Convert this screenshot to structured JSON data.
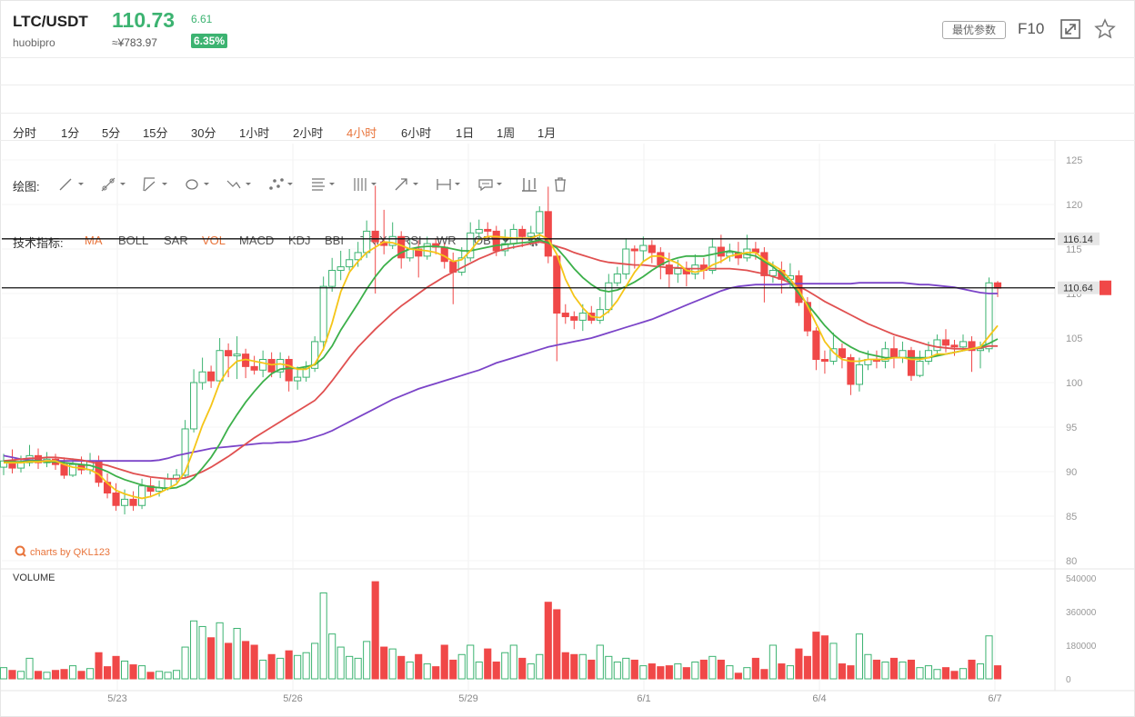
{
  "header": {
    "pair": "LTC/USDT",
    "exchange": "huobipro",
    "price": "110.73",
    "cny": "≈¥783.97",
    "change": "6.61",
    "change_pct": "6.35%",
    "params_label": "最优参数",
    "f10_label": "F10"
  },
  "periods": [
    "分时",
    "1分",
    "5分",
    "15分",
    "30分",
    "1小时",
    "2小时",
    "4小时",
    "6小时",
    "1日",
    "1周",
    "1月"
  ],
  "active_period": "4小时",
  "toolbar": {
    "draw_label": "绘图:"
  },
  "indicators_label": "技术指标:",
  "indicators": [
    "MA",
    "BOLL",
    "SAR",
    "VOL",
    "MACD",
    "KDJ",
    "BBI",
    "TRIX",
    "RSI",
    "WR",
    "OBV"
  ],
  "active_indicators": [
    "MA",
    "VOL"
  ],
  "watermark": "charts by QKL123",
  "volume_label": "VOLUME",
  "colors": {
    "up": "#3cb371",
    "down": "#f04848",
    "ma5": "#f5c518",
    "ma10": "#3cb04a",
    "ma30": "#e05050",
    "ma60": "#7b44c8",
    "accent": "#e8743b"
  },
  "chart_data": {
    "type": "candlestick",
    "x_ticks": [
      "5/23",
      "5/26",
      "5/29",
      "6/1",
      "6/4",
      "6/7"
    ],
    "y_ticks": [
      125,
      120,
      115,
      110,
      105,
      100,
      95,
      90,
      85,
      80
    ],
    "ylim": [
      80,
      127
    ],
    "price_lines": [
      116.14,
      110.64
    ],
    "price_labels": [
      "116.14",
      "110.64"
    ],
    "volume_ticks": [
      "540000",
      "360000",
      "180000",
      "0"
    ],
    "volume_ylim": [
      0,
      540000
    ],
    "candles": [
      [
        90.5,
        91.2,
        89.6,
        92.0,
        1
      ],
      [
        91.2,
        90.4,
        89.8,
        92.5,
        0
      ],
      [
        90.4,
        91.0,
        89.9,
        91.8,
        1
      ],
      [
        91.0,
        91.8,
        90.6,
        93.0,
        1
      ],
      [
        91.8,
        91.0,
        90.3,
        92.6,
        0
      ],
      [
        91.0,
        91.4,
        90.5,
        92.2,
        1
      ],
      [
        91.4,
        90.8,
        90.2,
        92.0,
        0
      ],
      [
        90.8,
        89.6,
        89.2,
        91.6,
        0
      ],
      [
        89.6,
        90.8,
        89.4,
        91.5,
        1
      ],
      [
        90.8,
        90.2,
        89.7,
        91.7,
        0
      ],
      [
        90.2,
        91.2,
        89.7,
        92.1,
        1
      ],
      [
        91.2,
        88.8,
        88.3,
        91.8,
        0
      ],
      [
        88.8,
        87.6,
        87.0,
        89.8,
        0
      ],
      [
        87.6,
        86.2,
        85.6,
        88.7,
        0
      ],
      [
        86.2,
        86.9,
        85.2,
        88.0,
        1
      ],
      [
        86.9,
        86.2,
        85.6,
        87.8,
        0
      ],
      [
        86.2,
        88.4,
        85.8,
        89.2,
        1
      ],
      [
        88.4,
        87.8,
        87.1,
        89.3,
        0
      ],
      [
        87.8,
        88.2,
        87.2,
        89.0,
        1
      ],
      [
        88.2,
        89.2,
        87.9,
        89.8,
        1
      ],
      [
        89.2,
        89.6,
        88.8,
        90.3,
        1
      ],
      [
        89.6,
        94.8,
        89.3,
        95.8,
        1
      ],
      [
        94.8,
        100.0,
        94.4,
        101.5,
        1
      ],
      [
        100.0,
        101.2,
        99.2,
        102.8,
        1
      ],
      [
        101.2,
        100.2,
        99.4,
        101.9,
        0
      ],
      [
        100.2,
        103.6,
        99.8,
        105.0,
        1
      ],
      [
        103.6,
        103.0,
        100.6,
        104.4,
        0
      ],
      [
        103.0,
        103.2,
        100.4,
        105.2,
        1
      ],
      [
        103.2,
        101.8,
        100.5,
        103.8,
        0
      ],
      [
        101.8,
        101.4,
        100.9,
        103.0,
        0
      ],
      [
        101.4,
        102.6,
        100.6,
        103.6,
        1
      ],
      [
        102.6,
        101.2,
        100.6,
        103.4,
        0
      ],
      [
        101.2,
        102.6,
        100.5,
        103.4,
        1
      ],
      [
        102.6,
        100.2,
        99.0,
        103.0,
        0
      ],
      [
        100.2,
        100.6,
        99.2,
        101.8,
        1
      ],
      [
        100.6,
        101.6,
        100.1,
        102.4,
        1
      ],
      [
        101.6,
        104.6,
        101.2,
        105.2,
        1
      ],
      [
        104.6,
        110.8,
        103.6,
        111.9,
        1
      ],
      [
        110.8,
        112.6,
        110.2,
        114.0,
        1
      ],
      [
        112.6,
        113.0,
        111.5,
        114.8,
        1
      ],
      [
        113.0,
        113.8,
        112.6,
        115.0,
        1
      ],
      [
        113.8,
        114.6,
        113.0,
        115.8,
        1
      ],
      [
        114.6,
        117.0,
        114.0,
        118.2,
        1
      ],
      [
        117.0,
        115.8,
        110.0,
        122.1,
        0
      ],
      [
        115.8,
        115.4,
        114.4,
        119.4,
        0
      ],
      [
        115.4,
        116.4,
        115.0,
        118.0,
        1
      ],
      [
        116.4,
        114.0,
        112.8,
        117.0,
        0
      ],
      [
        114.0,
        115.0,
        113.6,
        116.2,
        1
      ],
      [
        115.0,
        114.2,
        111.8,
        116.0,
        0
      ],
      [
        114.2,
        115.6,
        113.8,
        116.4,
        1
      ],
      [
        115.6,
        115.2,
        114.4,
        116.2,
        0
      ],
      [
        115.2,
        113.6,
        112.8,
        115.6,
        0
      ],
      [
        113.6,
        112.4,
        108.8,
        114.6,
        0
      ],
      [
        112.4,
        114.0,
        112.0,
        115.2,
        1
      ],
      [
        114.0,
        116.8,
        113.6,
        118.0,
        1
      ],
      [
        116.8,
        117.2,
        116.0,
        118.3,
        1
      ],
      [
        117.2,
        117.0,
        116.2,
        118.0,
        0
      ],
      [
        117.0,
        114.8,
        114.2,
        117.6,
        0
      ],
      [
        114.8,
        115.6,
        114.2,
        117.2,
        1
      ],
      [
        115.6,
        117.2,
        115.0,
        117.8,
        1
      ],
      [
        117.2,
        116.4,
        115.2,
        117.6,
        0
      ],
      [
        116.4,
        116.8,
        115.4,
        117.6,
        1
      ],
      [
        116.8,
        119.2,
        116.2,
        119.8,
        1
      ],
      [
        119.2,
        114.2,
        113.4,
        122.0,
        0
      ],
      [
        114.2,
        107.8,
        102.4,
        114.4,
        0
      ],
      [
        107.8,
        107.4,
        106.6,
        108.8,
        0
      ],
      [
        107.4,
        107.0,
        106.0,
        108.0,
        0
      ],
      [
        107.0,
        107.8,
        105.8,
        108.8,
        1
      ],
      [
        107.8,
        107.0,
        106.6,
        108.6,
        0
      ],
      [
        107.0,
        108.2,
        106.6,
        109.6,
        1
      ],
      [
        108.2,
        111.2,
        107.8,
        112.2,
        1
      ],
      [
        111.2,
        112.2,
        110.8,
        113.0,
        1
      ],
      [
        112.2,
        115.0,
        111.6,
        116.2,
        1
      ],
      [
        115.0,
        114.8,
        112.8,
        115.4,
        0
      ],
      [
        114.8,
        115.4,
        113.6,
        116.4,
        1
      ],
      [
        115.4,
        114.6,
        113.4,
        116.0,
        0
      ],
      [
        114.6,
        113.2,
        111.6,
        115.2,
        0
      ],
      [
        113.2,
        112.2,
        110.6,
        114.6,
        0
      ],
      [
        112.2,
        112.8,
        111.2,
        113.8,
        1
      ],
      [
        112.8,
        112.2,
        110.8,
        113.6,
        0
      ],
      [
        112.2,
        113.2,
        111.6,
        114.4,
        1
      ],
      [
        113.2,
        112.6,
        111.6,
        114.0,
        0
      ],
      [
        112.6,
        115.2,
        112.2,
        116.2,
        1
      ],
      [
        115.2,
        114.2,
        113.4,
        116.6,
        0
      ],
      [
        114.2,
        114.6,
        113.6,
        115.6,
        1
      ],
      [
        114.6,
        114.0,
        113.2,
        115.8,
        0
      ],
      [
        114.0,
        115.0,
        113.6,
        116.6,
        1
      ],
      [
        115.0,
        114.6,
        113.8,
        115.8,
        0
      ],
      [
        114.6,
        112.0,
        109.0,
        115.2,
        0
      ],
      [
        112.0,
        112.6,
        111.2,
        113.6,
        1
      ],
      [
        112.6,
        111.6,
        110.0,
        113.6,
        0
      ],
      [
        111.6,
        112.0,
        110.6,
        113.4,
        1
      ],
      [
        112.0,
        109.0,
        108.6,
        112.6,
        0
      ],
      [
        109.0,
        105.8,
        105.2,
        109.6,
        0
      ],
      [
        105.8,
        102.6,
        101.4,
        106.2,
        0
      ],
      [
        102.6,
        102.4,
        101.0,
        103.6,
        0
      ],
      [
        102.4,
        103.8,
        102.0,
        105.6,
        1
      ],
      [
        103.8,
        102.8,
        101.6,
        104.4,
        0
      ],
      [
        102.8,
        99.8,
        98.6,
        103.2,
        0
      ],
      [
        99.8,
        102.0,
        99.0,
        102.8,
        1
      ],
      [
        102.0,
        102.6,
        101.4,
        103.6,
        1
      ],
      [
        102.6,
        102.4,
        101.6,
        103.6,
        0
      ],
      [
        102.4,
        103.8,
        101.6,
        104.6,
        1
      ],
      [
        103.8,
        102.8,
        101.6,
        105.2,
        0
      ],
      [
        102.8,
        103.6,
        102.2,
        104.6,
        1
      ],
      [
        103.6,
        100.8,
        100.2,
        104.0,
        0
      ],
      [
        100.8,
        102.4,
        100.6,
        103.6,
        1
      ],
      [
        102.4,
        103.6,
        102.0,
        104.6,
        1
      ],
      [
        103.6,
        104.8,
        103.0,
        105.4,
        1
      ],
      [
        104.8,
        104.2,
        103.4,
        106.0,
        0
      ],
      [
        104.2,
        104.0,
        103.0,
        104.8,
        0
      ],
      [
        104.0,
        104.6,
        103.6,
        105.4,
        1
      ],
      [
        104.6,
        103.6,
        101.2,
        105.2,
        0
      ],
      [
        103.6,
        103.8,
        101.6,
        104.6,
        1
      ],
      [
        103.8,
        111.2,
        103.4,
        111.8,
        1
      ],
      [
        111.2,
        110.6,
        109.6,
        111.4,
        0
      ]
    ],
    "volumes": [
      60000,
      45000,
      40000,
      110000,
      40000,
      35000,
      45000,
      50000,
      70000,
      40000,
      55000,
      140000,
      65000,
      120000,
      95000,
      75000,
      70000,
      35000,
      40000,
      35000,
      45000,
      170000,
      310000,
      280000,
      220000,
      300000,
      190000,
      270000,
      200000,
      180000,
      100000,
      130000,
      110000,
      150000,
      125000,
      140000,
      190000,
      460000,
      240000,
      170000,
      120000,
      110000,
      200000,
      520000,
      170000,
      160000,
      120000,
      90000,
      130000,
      80000,
      65000,
      180000,
      100000,
      130000,
      180000,
      90000,
      160000,
      90000,
      140000,
      180000,
      110000,
      80000,
      130000,
      410000,
      370000,
      140000,
      130000,
      130000,
      100000,
      180000,
      120000,
      90000,
      110000,
      100000,
      70000,
      80000,
      65000,
      70000,
      80000,
      60000,
      90000,
      100000,
      120000,
      100000,
      70000,
      30000,
      60000,
      110000,
      50000,
      180000,
      80000,
      70000,
      160000,
      120000,
      250000,
      230000,
      190000,
      80000,
      70000,
      240000,
      130000,
      100000,
      90000,
      110000,
      90000,
      100000,
      60000,
      70000,
      50000,
      60000,
      40000,
      55000,
      100000,
      80000,
      230000,
      70000
    ],
    "ma5": [
      91.0,
      91.0,
      91.0,
      91.1,
      91.1,
      91.2,
      91.2,
      90.8,
      90.5,
      90.4,
      90.2,
      89.7,
      88.7,
      87.9,
      87.5,
      87.2,
      87.0,
      87.2,
      87.6,
      88.1,
      88.6,
      90.0,
      92.5,
      95.2,
      97.4,
      100.0,
      101.5,
      102.4,
      102.6,
      102.4,
      102.2,
      102.0,
      102.1,
      101.9,
      101.5,
      101.5,
      102.1,
      103.8,
      106.7,
      110.2,
      112.4,
      113.6,
      114.6,
      115.2,
      115.8,
      115.7,
      115.4,
      115.0,
      114.9,
      114.8,
      114.6,
      114.2,
      113.6,
      113.8,
      114.8,
      116.0,
      116.4,
      116.4,
      116.3,
      116.2,
      116.2,
      116.2,
      116.6,
      116.1,
      114.4,
      111.6,
      109.7,
      108.4,
      107.4,
      107.3,
      108.0,
      109.2,
      110.8,
      112.4,
      113.6,
      114.2,
      114.2,
      113.8,
      113.4,
      112.6,
      112.4,
      112.6,
      113.2,
      113.6,
      114.2,
      114.4,
      114.6,
      114.6,
      113.8,
      113.2,
      112.6,
      111.6,
      110.4,
      108.6,
      106.6,
      104.6,
      103.4,
      102.6,
      102.4,
      102.4,
      102.6,
      102.6,
      102.6,
      102.8,
      102.8,
      102.6,
      102.6,
      102.8,
      103.2,
      103.2,
      103.4,
      103.6,
      103.8,
      104.0,
      105.2,
      106.4
    ],
    "ma10": [
      91.1,
      91.1,
      91.1,
      91.2,
      91.2,
      91.1,
      91.1,
      91.0,
      90.9,
      90.8,
      90.7,
      90.4,
      90.0,
      89.5,
      89.1,
      88.8,
      88.5,
      88.3,
      88.2,
      88.1,
      88.2,
      88.6,
      89.3,
      90.4,
      91.6,
      93.1,
      94.9,
      96.4,
      97.8,
      99.0,
      100.1,
      101.0,
      101.5,
      101.6,
      101.6,
      101.8,
      102.0,
      102.8,
      104.1,
      105.9,
      107.4,
      108.9,
      110.5,
      111.9,
      113.1,
      114.0,
      114.6,
      115.0,
      115.2,
      115.3,
      115.3,
      115.2,
      115.0,
      114.8,
      114.8,
      115.0,
      115.2,
      115.4,
      115.5,
      115.6,
      115.7,
      115.8,
      116.0,
      115.7,
      115.1,
      114.0,
      112.8,
      111.8,
      111.0,
      110.4,
      110.2,
      110.4,
      110.8,
      111.3,
      111.9,
      112.6,
      113.2,
      113.7,
      114.0,
      114.2,
      114.2,
      114.2,
      114.4,
      114.6,
      114.8,
      114.6,
      114.4,
      114.2,
      113.6,
      113.0,
      112.2,
      111.2,
      110.0,
      108.8,
      107.6,
      106.4,
      105.4,
      104.6,
      104.0,
      103.5,
      103.2,
      103.0,
      102.8,
      102.8,
      102.8,
      102.8,
      102.8,
      102.8,
      103.0,
      103.2,
      103.4,
      103.6,
      103.8,
      104.0,
      104.4,
      104.9
    ],
    "ma30": [
      91.2,
      91.3,
      91.4,
      91.5,
      91.5,
      91.6,
      91.6,
      91.5,
      91.4,
      91.3,
      91.1,
      90.9,
      90.7,
      90.4,
      90.1,
      89.8,
      89.6,
      89.4,
      89.3,
      89.2,
      89.2,
      89.3,
      89.6,
      90.0,
      90.5,
      91.1,
      91.7,
      92.4,
      93.1,
      93.8,
      94.4,
      95.0,
      95.6,
      96.2,
      96.8,
      97.4,
      98.0,
      99.0,
      100.2,
      101.5,
      102.8,
      104.0,
      105.0,
      106.0,
      106.9,
      107.8,
      108.6,
      109.3,
      110.0,
      110.7,
      111.3,
      111.9,
      112.4,
      112.9,
      113.4,
      113.9,
      114.3,
      114.7,
      115.0,
      115.2,
      115.4,
      115.6,
      115.8,
      115.6,
      115.3,
      115.0,
      114.6,
      114.3,
      114.0,
      113.7,
      113.5,
      113.4,
      113.3,
      113.2,
      113.2,
      113.1,
      113.0,
      112.9,
      112.9,
      112.8,
      112.8,
      112.8,
      112.8,
      112.8,
      112.8,
      112.7,
      112.6,
      112.4,
      112.2,
      111.9,
      111.6,
      111.2,
      110.8,
      110.3,
      109.7,
      109.1,
      108.6,
      108.1,
      107.6,
      107.1,
      106.6,
      106.2,
      105.8,
      105.4,
      105.1,
      104.8,
      104.5,
      104.2,
      104.0,
      103.9,
      103.8,
      103.8,
      103.8,
      103.9,
      104.1,
      104.1
    ],
    "ma60": [
      91.8,
      91.6,
      91.4,
      91.3,
      91.2,
      91.2,
      91.2,
      91.2,
      91.2,
      91.2,
      91.2,
      91.2,
      91.2,
      91.2,
      91.2,
      91.2,
      91.2,
      91.2,
      91.3,
      91.5,
      91.8,
      92.0,
      92.2,
      92.4,
      92.6,
      92.7,
      92.8,
      92.9,
      93.0,
      93.1,
      93.2,
      93.2,
      93.3,
      93.3,
      93.4,
      93.6,
      93.9,
      94.2,
      94.6,
      95.1,
      95.6,
      96.1,
      96.6,
      97.1,
      97.6,
      98.1,
      98.5,
      98.9,
      99.3,
      99.6,
      99.9,
      100.2,
      100.5,
      100.8,
      101.1,
      101.4,
      101.8,
      102.2,
      102.5,
      102.8,
      103.1,
      103.4,
      103.7,
      104.0,
      104.2,
      104.4,
      104.6,
      104.8,
      105.0,
      105.3,
      105.6,
      105.9,
      106.2,
      106.5,
      106.8,
      107.1,
      107.5,
      107.9,
      108.3,
      108.7,
      109.1,
      109.5,
      109.9,
      110.3,
      110.6,
      110.8,
      110.9,
      111.0,
      111.0,
      111.0,
      111.0,
      111.1,
      111.1,
      111.1,
      111.1,
      111.1,
      111.1,
      111.1,
      111.1,
      111.2,
      111.2,
      111.2,
      111.2,
      111.2,
      111.2,
      111.1,
      111.0,
      111.0,
      110.9,
      110.8,
      110.7,
      110.5,
      110.3,
      110.1,
      110.0,
      110.0
    ]
  }
}
